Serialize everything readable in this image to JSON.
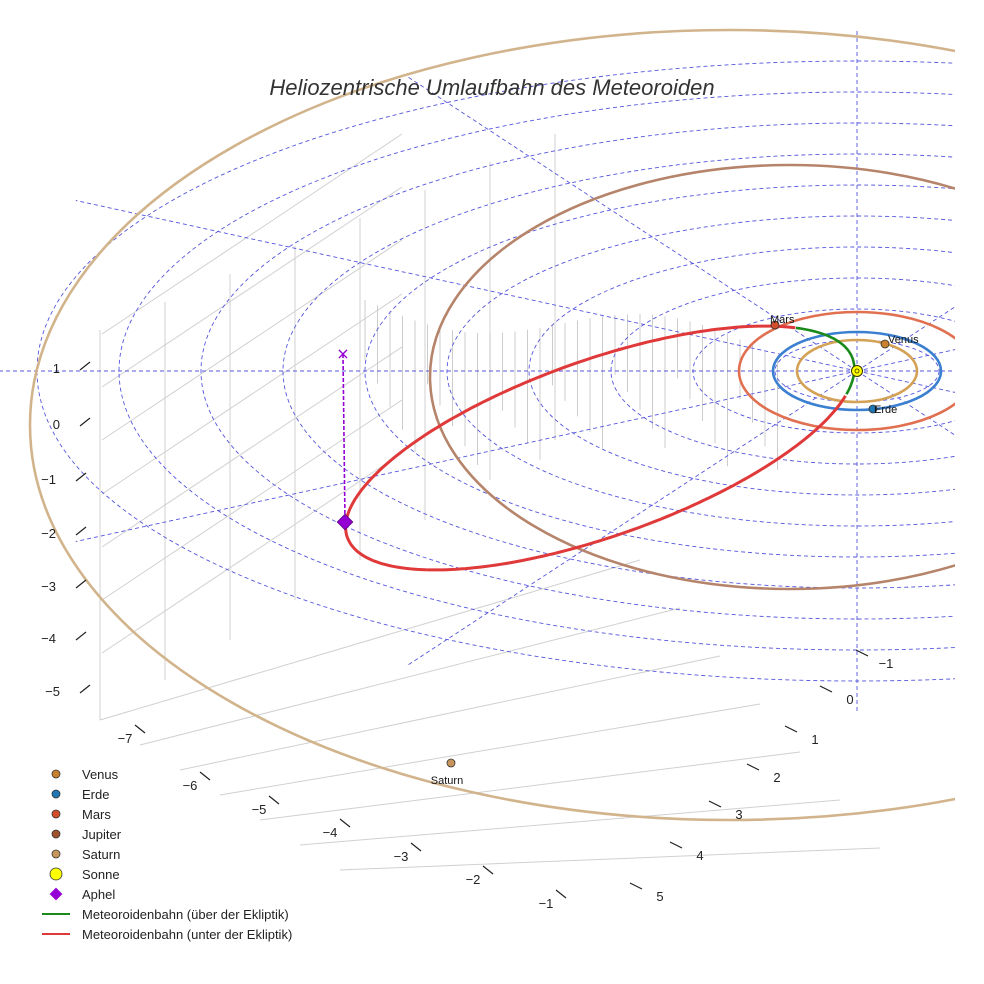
{
  "chart_data": {
    "type": "line3d",
    "title": "Heliozentrische Umlaufbahn des Meteoroiden",
    "xlabel": "",
    "ylabel": "",
    "zlabel": "",
    "x_ticks": [
      -7,
      -6,
      -5,
      -4,
      -3,
      -2,
      -1
    ],
    "y_ticks": [
      -1,
      0,
      1,
      2,
      3,
      4,
      5
    ],
    "z_ticks": [
      1,
      0,
      -1,
      -2,
      -3,
      -4,
      -5
    ],
    "x_tick_labels": [
      "−7",
      "−6",
      "−5",
      "−4",
      "−3",
      "−2",
      "−1"
    ],
    "y_tick_labels": [
      "−1",
      "0",
      "1",
      "2",
      "3",
      "4",
      "5"
    ],
    "z_tick_labels": [
      "1",
      "0",
      "−1",
      "−2",
      "−3",
      "−4",
      "−5"
    ],
    "xlim": [
      -7.8,
      0
    ],
    "ylim": [
      -2,
      5.6
    ],
    "zlim": [
      -5.6,
      1.6
    ],
    "ecliptic_grid_radii_au": [
      1,
      2,
      3,
      4,
      5,
      6,
      7,
      8,
      9,
      10
    ],
    "planet_orbits": [
      {
        "name": "Venus",
        "radius_au": 0.72,
        "color": "#d4a257"
      },
      {
        "name": "Erde",
        "radius_au": 1.0,
        "color": "#3a7fd0"
      },
      {
        "name": "Mars",
        "radius_au": 1.52,
        "color": "#e07050"
      },
      {
        "name": "Jupiter",
        "radius_au": 5.2,
        "color": "#b5846a"
      },
      {
        "name": "Saturn",
        "radius_au": 9.54,
        "color": "#d2b48c"
      }
    ],
    "planets": [
      {
        "name": "Venus",
        "label": "Venus",
        "x": 0.5,
        "y": -0.5,
        "z": 0,
        "color": "#c8812e"
      },
      {
        "name": "Erde",
        "label": "Erde",
        "x": 0.3,
        "y": 0.95,
        "z": 0,
        "color": "#1f77b4"
      },
      {
        "name": "Mars",
        "label": "Mars",
        "x": -1.4,
        "y": -0.6,
        "z": 0,
        "color": "#d24e2c"
      },
      {
        "name": "Saturn",
        "label": "Saturn",
        "x": -6.9,
        "y": 6.8,
        "z": 0,
        "color": "#c8965c"
      }
    ],
    "sun": {
      "name": "Sonne",
      "x": 0,
      "y": 0,
      "z": 0,
      "color": "#ffff00"
    },
    "aphelion": {
      "name": "Aphel",
      "x": -9.4,
      "y": 2.4,
      "z": -2.9,
      "color": "#9400d3",
      "projection_marker": "×"
    },
    "meteoroid_orbit": {
      "perihelion_au": 0.9,
      "aphelion_au": 9.7,
      "series": [
        {
          "name": "Meteoroidenbahn (über der Ekliptik)",
          "color": "#1a8a1a"
        },
        {
          "name": "Meteoroidenbahn (unter der Ekliptik)",
          "color": "#e0393a"
        }
      ]
    },
    "legend": {
      "position": "bottom-left",
      "entries": [
        {
          "label": "Venus",
          "marker": "circle",
          "color": "#c8812e"
        },
        {
          "label": "Erde",
          "marker": "circle",
          "color": "#1f77b4"
        },
        {
          "label": "Mars",
          "marker": "circle",
          "color": "#d24e2c"
        },
        {
          "label": "Jupiter",
          "marker": "circle",
          "color": "#a0522d"
        },
        {
          "label": "Saturn",
          "marker": "circle",
          "color": "#c8965c"
        },
        {
          "label": "Sonne",
          "marker": "circle",
          "color": "#ffff00"
        },
        {
          "label": "Aphel",
          "marker": "diamond",
          "color": "#9400d3"
        },
        {
          "label": "Meteoroidenbahn (über der Ekliptik)",
          "marker": "line",
          "color": "#1a8a1a"
        },
        {
          "label": "Meteoroidenbahn (unter der Ekliptik)",
          "marker": "line",
          "color": "#e0393a"
        }
      ]
    }
  }
}
